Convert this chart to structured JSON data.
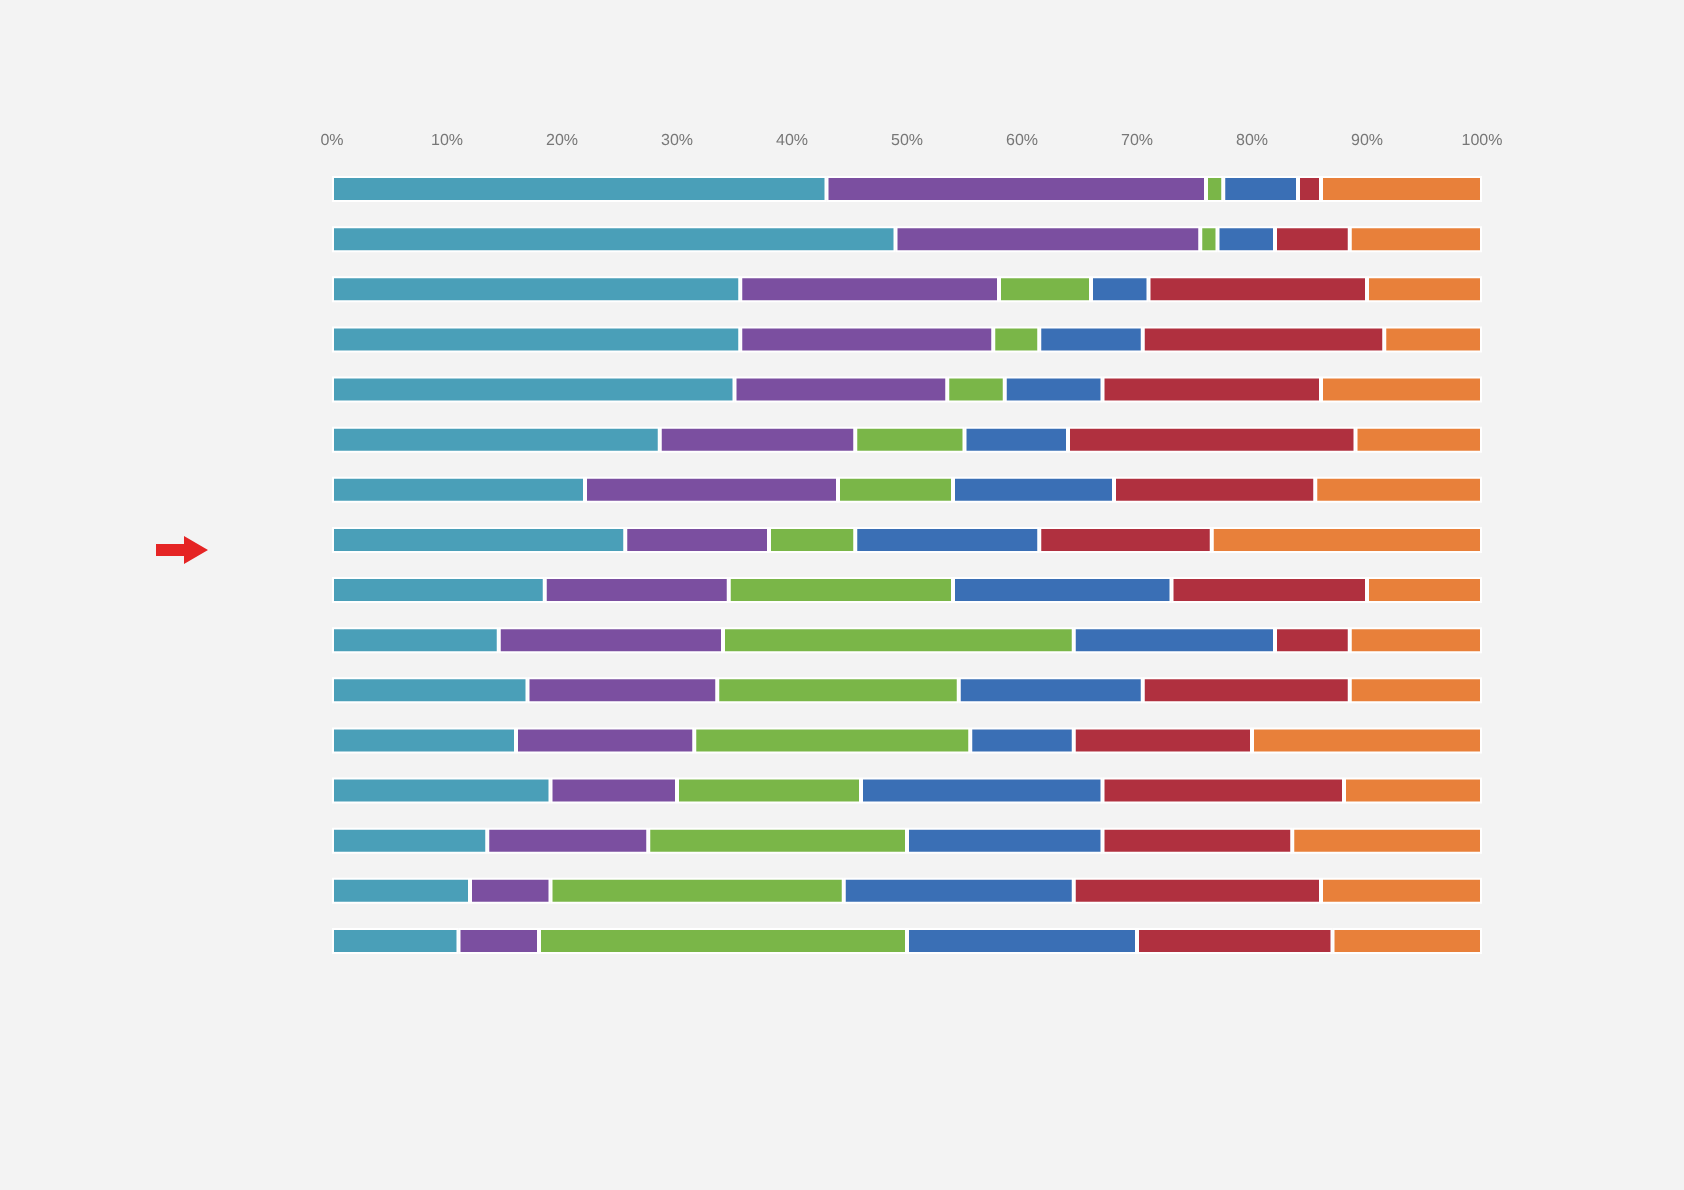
{
  "chart_data": {
    "type": "bar",
    "orientation": "horizontal",
    "stacked": true,
    "categories": [
      null,
      null,
      null,
      null,
      null,
      null,
      null,
      null,
      null,
      null,
      null,
      null,
      null,
      null,
      null,
      null
    ],
    "xlim": [
      0,
      100
    ],
    "xticks": [
      {
        "value": 0,
        "label": "0%"
      },
      {
        "value": 10,
        "label": "10%"
      },
      {
        "value": 20,
        "label": "20%"
      },
      {
        "value": 30,
        "label": "30%"
      },
      {
        "value": 40,
        "label": "40%"
      },
      {
        "value": 50,
        "label": "50%"
      },
      {
        "value": 60,
        "label": "60%"
      },
      {
        "value": 70,
        "label": "70%"
      },
      {
        "value": 80,
        "label": "80%"
      },
      {
        "value": 90,
        "label": "90%"
      },
      {
        "value": 100,
        "label": "100%"
      }
    ],
    "series": [
      {
        "color": "#4a9fb8",
        "values": [
          43,
          49,
          35.5,
          35.5,
          35,
          28.5,
          22,
          25.5,
          18.5,
          14.5,
          17,
          16,
          19,
          13.5,
          12,
          11
        ]
      },
      {
        "color": "#7b4fa0",
        "values": [
          33,
          26.5,
          22.5,
          22,
          18.5,
          17,
          22,
          12.5,
          16,
          19.5,
          16.5,
          15.5,
          11,
          14,
          7,
          7
        ]
      },
      {
        "color": "#7ab648",
        "values": [
          1.5,
          1.5,
          8,
          4,
          5,
          9.5,
          10,
          7.5,
          19.5,
          30.5,
          21,
          24,
          16,
          22.5,
          25.5,
          32
        ]
      },
      {
        "color": "#3a6fb5",
        "values": [
          6.5,
          5,
          5,
          9,
          8.5,
          9,
          14,
          16,
          19,
          17.5,
          16,
          9,
          21,
          17,
          20,
          20
        ]
      },
      {
        "color": "#b0303f",
        "values": [
          2,
          6.5,
          19,
          21,
          19,
          25,
          17.5,
          15,
          17,
          6.5,
          18,
          15.5,
          21,
          16.5,
          21.5,
          17
        ]
      },
      {
        "color": "#e8803a",
        "values": [
          14,
          11.5,
          10,
          8.5,
          14,
          11,
          14.5,
          23.5,
          10,
          11.5,
          11.5,
          20,
          12,
          16.5,
          14,
          13
        ]
      }
    ]
  }
}
